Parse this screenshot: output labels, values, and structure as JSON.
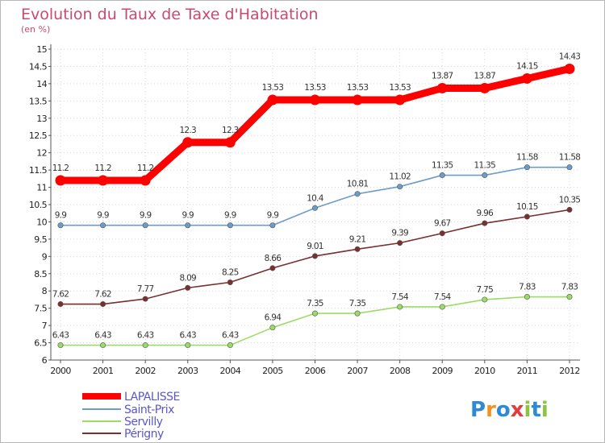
{
  "chart_data": {
    "type": "line",
    "title": "Evolution du Taux de Taxe d'Habitation",
    "subtitle": "(en %)",
    "x": [
      "2000",
      "2001",
      "2002",
      "2003",
      "2004",
      "2005",
      "2006",
      "2007",
      "2008",
      "2009",
      "2010",
      "2011",
      "2012"
    ],
    "ylim": [
      6,
      15
    ],
    "yticks": [
      "6",
      "6.5",
      "7",
      "7.5",
      "8",
      "8.5",
      "9",
      "9.5",
      "10",
      "10.5",
      "11",
      "11.5",
      "12",
      "12.5",
      "13",
      "13.5",
      "14",
      "14.5",
      "15"
    ],
    "legend_position": "bottom-left",
    "series": [
      {
        "name": "LAPALISSE",
        "color": "#ff0000",
        "values": [
          11.2,
          11.2,
          11.2,
          12.3,
          12.3,
          13.53,
          13.53,
          13.53,
          13.53,
          13.87,
          13.87,
          14.15,
          14.43
        ],
        "labels": [
          "11.2",
          "11.2",
          "11.2",
          "12.3",
          "12.3",
          "13.53",
          "13.53",
          "13.53",
          "13.53",
          "13.87",
          "13.87",
          "14.15",
          "14.43"
        ]
      },
      {
        "name": "Saint-Prix",
        "color": "#6c9cc8",
        "values": [
          9.9,
          9.9,
          9.9,
          9.9,
          9.9,
          9.9,
          10.4,
          10.81,
          11.02,
          11.35,
          11.35,
          11.58,
          11.58
        ],
        "labels": [
          "9.9",
          "9.9",
          "9.9",
          "9.9",
          "9.9",
          "9.9",
          "10.4",
          "10.81",
          "11.02",
          "11.35",
          "11.35",
          "11.58",
          "11.58"
        ]
      },
      {
        "name": "Servilly",
        "color": "#99dd66",
        "values": [
          6.43,
          6.43,
          6.43,
          6.43,
          6.43,
          6.94,
          7.35,
          7.35,
          7.54,
          7.54,
          7.75,
          7.83,
          7.83
        ],
        "labels": [
          "6.43",
          "6.43",
          "6.43",
          "6.43",
          "6.43",
          "6.94",
          "7.35",
          "7.35",
          "7.54",
          "7.54",
          "7.75",
          "7.83",
          "7.83"
        ]
      },
      {
        "name": "Périgny",
        "color": "#7a2e2e",
        "values": [
          7.62,
          7.62,
          7.77,
          8.09,
          8.25,
          8.66,
          9.01,
          9.21,
          9.39,
          9.67,
          9.96,
          10.15,
          10.35
        ],
        "labels": [
          "7.62",
          "7.62",
          "7.77",
          "8.09",
          "8.25",
          "8.66",
          "9.01",
          "9.21",
          "9.39",
          "9.67",
          "9.96",
          "10.15",
          "10.35"
        ]
      }
    ]
  },
  "logo": {
    "text": "Proxiti",
    "colors": [
      "#2f8ad6",
      "#f2931f",
      "#2f8ad6",
      "#e23d3d",
      "#8bc540",
      "#2f8ad6",
      "#8bc540"
    ]
  }
}
